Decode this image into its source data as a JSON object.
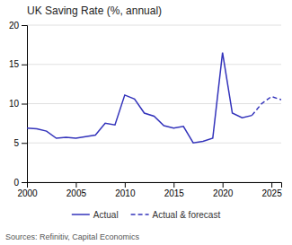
{
  "chart_data": {
    "type": "line",
    "title": "UK Saving Rate (%, annual)",
    "annotation": "Sources: Refinitiv, Capital Economics",
    "xlim": [
      2000,
      2026
    ],
    "xticks": [
      2000,
      2005,
      2010,
      2015,
      2020,
      2025
    ],
    "ylim": [
      0,
      20
    ],
    "yticks": [
      0,
      5,
      10,
      15,
      20
    ],
    "grid": true,
    "legend": "bottom",
    "series": [
      {
        "name": "Actual",
        "color": "#3333bb",
        "line_style": "solid",
        "x": [
          2000,
          2001,
          2002,
          2003,
          2004,
          2005,
          2006,
          2007,
          2008,
          2009,
          2010,
          2011,
          2012,
          2013,
          2014,
          2015,
          2016,
          2017,
          2018,
          2019,
          2020,
          2021,
          2022,
          2023
        ],
        "values": [
          6.9,
          6.8,
          6.5,
          5.6,
          5.7,
          5.6,
          5.8,
          6.0,
          7.5,
          7.3,
          11.1,
          10.6,
          8.8,
          8.4,
          7.2,
          6.9,
          7.1,
          5.0,
          5.2,
          5.6,
          16.5,
          8.8,
          8.2,
          8.5
        ]
      },
      {
        "name": "Actual & forecast",
        "color": "#3333bb",
        "line_style": "dashed",
        "x": [
          2023,
          2024,
          2025,
          2026
        ],
        "values": [
          8.5,
          10.0,
          10.9,
          10.5
        ]
      }
    ]
  }
}
